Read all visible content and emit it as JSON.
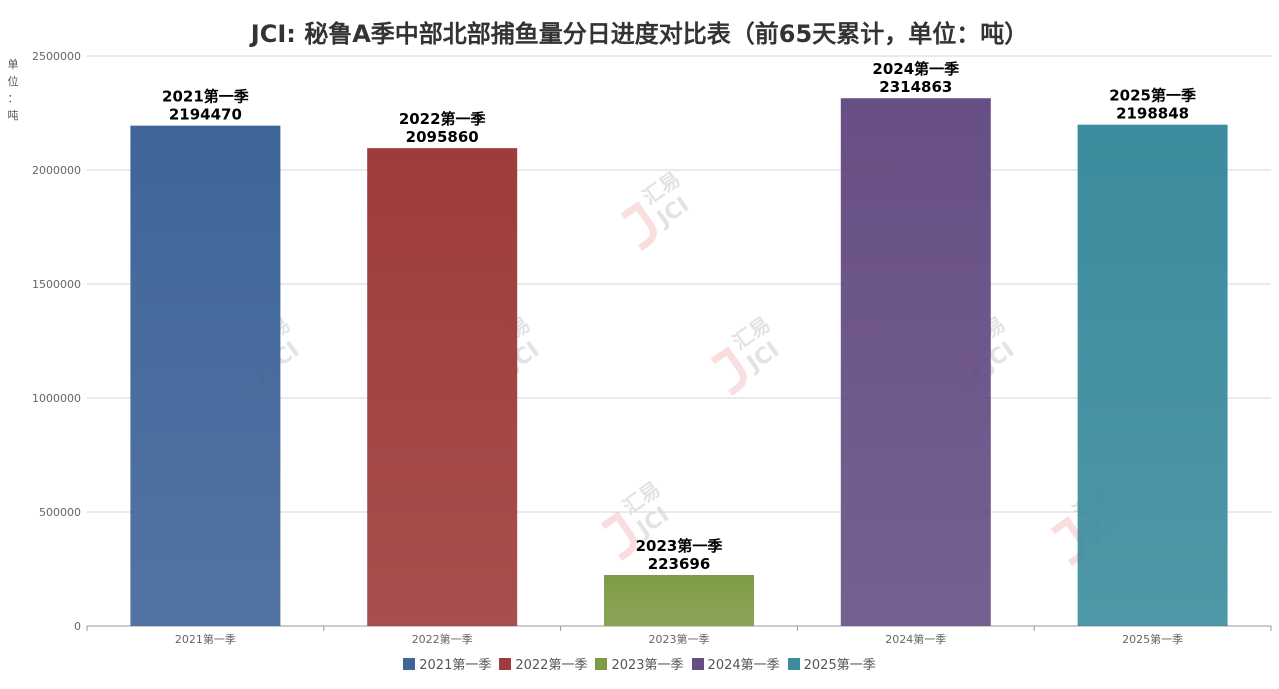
{
  "chart_data": {
    "type": "bar",
    "title": "JCI: 秘鲁A季中部北部捕鱼量分日进度对比表（前65天累计，单位：吨）",
    "y_unit": "单位：吨",
    "categories": [
      "2021第一季",
      "2022第一季",
      "2023第一季",
      "2024第一季",
      "2025第一季"
    ],
    "values": [
      2194470,
      2095860,
      223696,
      2314863,
      2198848
    ],
    "series": [
      {
        "name": "2021第一季",
        "value": 2194470,
        "color": "#3f6599"
      },
      {
        "name": "2022第一季",
        "value": 2095860,
        "color": "#9d3c3b"
      },
      {
        "name": "2023第一季",
        "value": 223696,
        "color": "#7e9b45"
      },
      {
        "name": "2024第一季",
        "value": 2314863,
        "color": "#674f85"
      },
      {
        "name": "2025第一季",
        "value": 2198848,
        "color": "#3b8c9e"
      }
    ],
    "yticks": [
      "0",
      "500000",
      "1000000",
      "1500000",
      "2000000",
      "2500000"
    ],
    "ylim": [
      0,
      2500000
    ],
    "grid": true,
    "legend": "bottom"
  }
}
